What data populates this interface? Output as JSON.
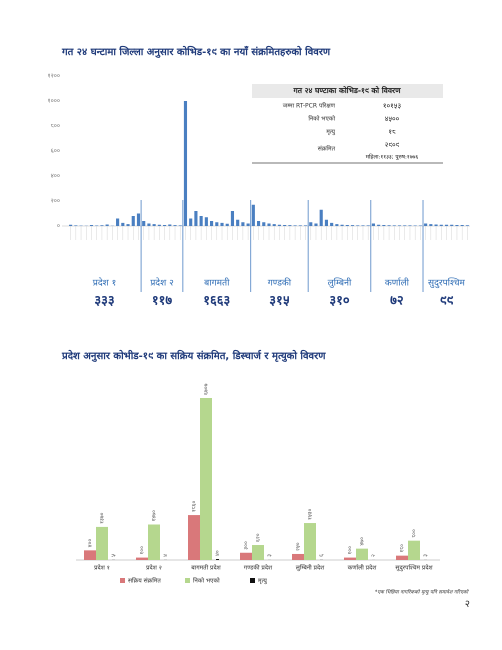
{
  "chart_data": [
    {
      "type": "bar",
      "title": "गत २४ घन्टामा जिल्ला अनुसार कोभिड-१९ का नयाँ संक्रमितहरुको विवरण",
      "categories": [
        null,
        null,
        null,
        null,
        null,
        null,
        null,
        null,
        null,
        null,
        null,
        null,
        null,
        null,
        null,
        null,
        null,
        null,
        null,
        null,
        null,
        null,
        null,
        null,
        null,
        null,
        null,
        null,
        null,
        null,
        null,
        null,
        null,
        null,
        null,
        null,
        null,
        null,
        null,
        null,
        null,
        null,
        null,
        null,
        null,
        null,
        null,
        null,
        null,
        null,
        null,
        null,
        null,
        null,
        null,
        null,
        null,
        null,
        null,
        null,
        null,
        null,
        null,
        null,
        null,
        null,
        null,
        null,
        null,
        null,
        null,
        null,
        null,
        null,
        null,
        null,
        null
      ],
      "values": [
        10,
        5,
        3,
        2,
        8,
        4,
        6,
        12,
        2,
        60,
        25,
        15,
        80,
        100,
        40,
        20,
        15,
        10,
        8,
        12,
        7,
        5,
        1000,
        60,
        120,
        80,
        70,
        40,
        30,
        25,
        18,
        120,
        50,
        30,
        20,
        170,
        40,
        30,
        20,
        15,
        10,
        8,
        7,
        5,
        5,
        5,
        30,
        20,
        130,
        50,
        25,
        15,
        10,
        8,
        7,
        5,
        5,
        5,
        20,
        10,
        8,
        6,
        5,
        5,
        5,
        5,
        4,
        4,
        20,
        15,
        12,
        10,
        10,
        10,
        8,
        8,
        6
      ],
      "color": "#4a7fc1",
      "ylim": [
        0,
        1200
      ],
      "yticks": [
        {
          "value": 0,
          "label": "०"
        },
        {
          "value": 200,
          "label": "२००"
        },
        {
          "value": 400,
          "label": "४००"
        },
        {
          "value": 600,
          "label": "६००"
        },
        {
          "value": 800,
          "label": "८००"
        },
        {
          "value": 1000,
          "label": "१०००"
        },
        {
          "value": 1200,
          "label": "१२००"
        }
      ],
      "groups": [
        {
          "name": "प्रदेश १",
          "count": 14,
          "total": "३३३"
        },
        {
          "name": "प्रदेश २",
          "count": 8,
          "total": "११७"
        },
        {
          "name": "बागमती",
          "count": 13,
          "total": "१६६३"
        },
        {
          "name": "गण्डकी",
          "count": 11,
          "total": "३१५"
        },
        {
          "name": "लुम्बिनी",
          "count": 12,
          "total": "३१०"
        },
        {
          "name": "कर्णाली",
          "count": 10,
          "total": "७२"
        },
        {
          "name": "सुदुरपश्चिम",
          "count": 9,
          "total": "९९"
        }
      ]
    },
    {
      "type": "grouped-bar",
      "title": "प्रदेश अनुसार कोभीड-१९ का सक्रिय संक्रमित, डिस्चार्ज र मृत्युको विवरण",
      "categories": [
        "प्रदेश १",
        "प्रदेश २",
        "बागमती प्रदेश",
        "गण्डकी प्रदेश",
        "लुम्बिनी प्रदेश",
        "कर्णाली प्रदेश",
        "सुदुरपश्चिम प्रदेश"
      ],
      "series": [
        {
          "name": "सक्रिय संक्रमित",
          "color": "#d9787a",
          "values": [
            400,
            100,
            1860,
            300,
            250,
            100,
            180
          ],
          "value_labels": [
            "४००",
            "१००",
            "१८६०",
            "३००",
            "२५०",
            "१००",
            "१८०"
          ]
        },
        {
          "name": "निको भएको",
          "color": "#b5d78e",
          "values": [
            1370,
            1470,
            6707,
            620,
            1530,
            470,
            800
          ],
          "value_labels": [
            "१३७०",
            "१४७०",
            "६७०७",
            "६२०",
            "१५३०",
            "४७०",
            "८००"
          ]
        },
        {
          "name": "मृत्यु",
          "color": "#111111",
          "values": [
            5,
            4,
            40,
            3,
            6,
            2,
            3
          ],
          "value_labels": [
            "५",
            "४",
            "४०",
            "३",
            "६",
            "२",
            "३"
          ]
        }
      ]
    }
  ],
  "summary": {
    "title": "गत २४ घण्टाका कोभिड-१९ को विवरण",
    "rows": [
      [
        "जम्मा RT-PCR परिक्षण",
        "१०१५३"
      ],
      [
        "निको भएको",
        "४५००"
      ],
      [
        "मृत्यु",
        "१८"
      ],
      [
        "संक्रमित",
        "२९०९"
      ]
    ],
    "note": "महिला:११३३; पुरुष:१७७६"
  },
  "footnote": "*एक भिन्निया नागरिकको मृत्यु पनि समावेश गरिएको",
  "page_number": "२"
}
